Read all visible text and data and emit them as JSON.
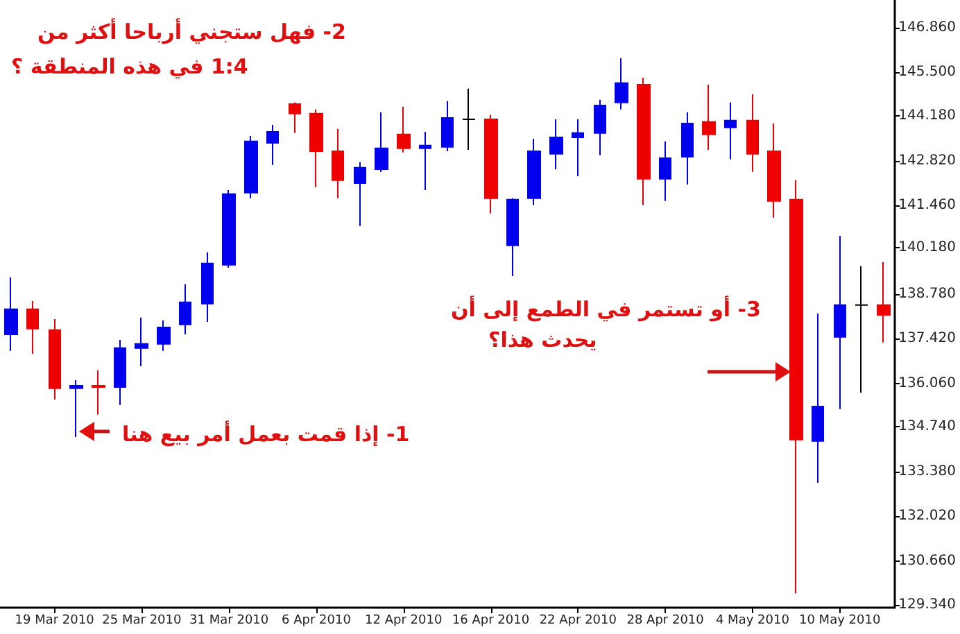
{
  "chart_data": {
    "type": "candlestick",
    "categories": [
      null,
      null,
      "19 Mar 2010",
      null,
      null,
      null,
      "25 Mar 2010",
      null,
      null,
      null,
      "31 Mar 2010",
      null,
      null,
      null,
      "6 Apr 2010",
      null,
      null,
      null,
      "12 Apr 2010",
      null,
      null,
      null,
      "16 Apr 2010",
      null,
      null,
      null,
      "22 Apr 2010",
      null,
      null,
      null,
      "28 Apr 2010",
      null,
      null,
      null,
      "4 May 2010",
      null,
      null,
      null,
      "10 May 2010",
      null,
      null
    ],
    "ohlc": [
      [
        137.55,
        139.28,
        137.05,
        138.31
      ],
      [
        138.31,
        138.56,
        136.96,
        137.72
      ],
      [
        137.68,
        138.01,
        135.57,
        135.91
      ],
      [
        135.91,
        136.16,
        134.43,
        135.99
      ],
      [
        135.99,
        136.46,
        135.11,
        135.95
      ],
      [
        135.95,
        137.38,
        135.4,
        137.13
      ],
      [
        137.13,
        138.06,
        136.58,
        137.26
      ],
      [
        137.26,
        137.97,
        137.05,
        137.76
      ],
      [
        137.85,
        139.07,
        137.55,
        138.52
      ],
      [
        138.48,
        140.04,
        137.93,
        139.7
      ],
      [
        139.66,
        141.93,
        139.57,
        141.81
      ],
      [
        141.85,
        143.57,
        141.68,
        143.41
      ],
      [
        143.36,
        143.91,
        142.69,
        143.7
      ],
      [
        144.54,
        144.59,
        143.66,
        144.25
      ],
      [
        144.25,
        144.38,
        142.02,
        143.11
      ],
      [
        143.11,
        143.79,
        141.68,
        142.23
      ],
      [
        142.14,
        142.77,
        140.84,
        142.61
      ],
      [
        142.56,
        144.29,
        142.48,
        143.2
      ],
      [
        143.62,
        144.46,
        143.07,
        143.2
      ],
      [
        143.2,
        143.7,
        141.93,
        143.28
      ],
      [
        143.24,
        144.63,
        143.11,
        144.12
      ],
      [
        144.08,
        145.01,
        143.15,
        144.08
      ],
      [
        144.08,
        144.21,
        141.22,
        141.68
      ],
      [
        140.25,
        141.68,
        139.32,
        141.64
      ],
      [
        141.68,
        143.49,
        141.47,
        143.11
      ],
      [
        143.03,
        144.08,
        142.56,
        143.53
      ],
      [
        143.53,
        144.08,
        142.35,
        143.66
      ],
      [
        143.66,
        144.67,
        142.99,
        144.5
      ],
      [
        144.59,
        145.93,
        144.38,
        145.18
      ],
      [
        145.13,
        145.34,
        141.47,
        142.27
      ],
      [
        142.27,
        143.41,
        141.6,
        142.9
      ],
      [
        142.94,
        144.29,
        142.1,
        143.95
      ],
      [
        144.0,
        145.13,
        143.15,
        143.62
      ],
      [
        143.83,
        144.59,
        142.86,
        144.04
      ],
      [
        144.04,
        144.84,
        142.48,
        143.03
      ],
      [
        143.11,
        143.95,
        141.09,
        141.6
      ],
      [
        141.64,
        142.23,
        129.68,
        134.35
      ],
      [
        134.31,
        138.18,
        133.04,
        135.36
      ],
      [
        137.47,
        140.54,
        135.28,
        138.44
      ],
      [
        138.44,
        139.62,
        135.78,
        138.44
      ],
      [
        138.44,
        139.74,
        137.3,
        138.14
      ]
    ],
    "colors": [
      "#0000ee",
      "#ee0000",
      "#ee0000",
      "#0000ee",
      "#ee0000",
      "#0000ee",
      "#0000ee",
      "#0000ee",
      "#0000ee",
      "#0000ee",
      "#0000ee",
      "#0000ee",
      "#0000ee",
      "#ee0000",
      "#ee0000",
      "#ee0000",
      "#0000ee",
      "#0000ee",
      "#ee0000",
      "#0000ee",
      "#0000ee",
      "#000000",
      "#ee0000",
      "#0000ee",
      "#0000ee",
      "#0000ee",
      "#0000ee",
      "#0000ee",
      "#0000ee",
      "#ee0000",
      "#0000ee",
      "#0000ee",
      "#ee0000",
      "#0000ee",
      "#ee0000",
      "#ee0000",
      "#ee0000",
      "#0000ee",
      "#0000ee",
      "#000000",
      "#ee0000"
    ],
    "ylim": [
      129.25,
      147.7
    ],
    "yticks": [
      {
        "value": 146.86,
        "label": "146.860"
      },
      {
        "value": 145.5,
        "label": "145.500"
      },
      {
        "value": 144.18,
        "label": "144.180"
      },
      {
        "value": 142.82,
        "label": "142.820"
      },
      {
        "value": 141.46,
        "label": "141.460"
      },
      {
        "value": 140.18,
        "label": "140.180"
      },
      {
        "value": 138.78,
        "label": "138.780"
      },
      {
        "value": 137.42,
        "label": "137.420"
      },
      {
        "value": 136.06,
        "label": "136.060"
      },
      {
        "value": 134.74,
        "label": "134.740"
      },
      {
        "value": 133.38,
        "label": "133.380"
      },
      {
        "value": 132.02,
        "label": "132.020"
      },
      {
        "value": 130.66,
        "label": "130.660"
      },
      {
        "value": 129.34,
        "label": "129.340"
      }
    ],
    "annotations": [
      "1- إذا قمت بعمل أمر بيع هنا",
      "2- فهل ستجني أرباحا أكثر من\n1:4 في هذه المنطقة ؟",
      "3- أو تستمر في الطمع إلى أن\nيحدث هذا؟"
    ]
  }
}
